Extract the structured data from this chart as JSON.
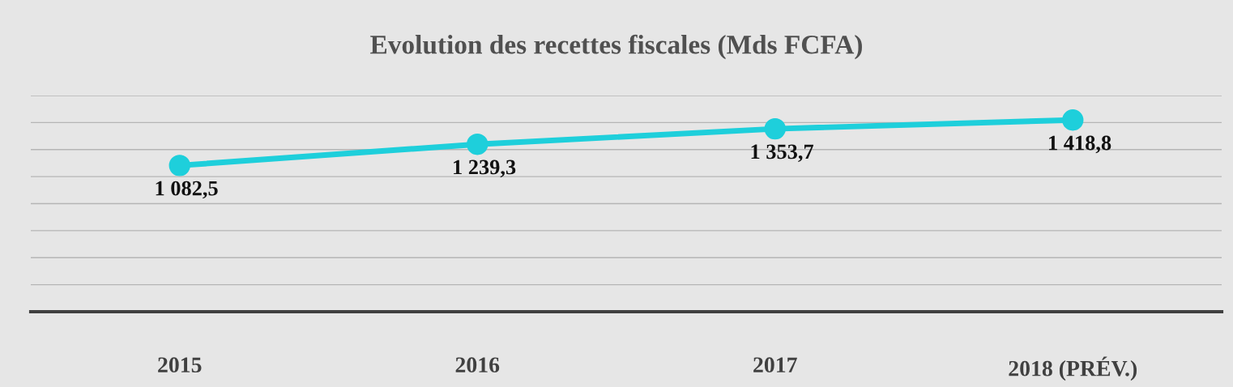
{
  "chart_data": {
    "type": "line",
    "title": "Evolution des recettes fiscales (Mds FCFA)",
    "categories": [
      "2015",
      "2016",
      "2017",
      "2018 (PRÉV.)"
    ],
    "series": [
      {
        "color": "#1ecfdb",
        "values": [
          1082.5,
          1239.3,
          1353.7,
          1418.8
        ],
        "value_labels": [
          "1 082,5",
          "1 239,3",
          "1 353,7",
          "1 418,8"
        ]
      }
    ],
    "ylim": [
      0,
      1600
    ],
    "yticks": [
      {
        "value": 0,
        "label": null
      },
      {
        "value": 200,
        "label": null
      },
      {
        "value": 400,
        "label": null
      },
      {
        "value": 600,
        "label": null
      },
      {
        "value": 800,
        "label": null
      },
      {
        "value": 1000,
        "label": null
      },
      {
        "value": 1200,
        "label": null
      },
      {
        "value": 1400,
        "label": null
      },
      {
        "value": 1600,
        "label": null
      }
    ],
    "grid": "y",
    "marker": "circle",
    "line_style": "solid",
    "tick_labels": "x"
  }
}
